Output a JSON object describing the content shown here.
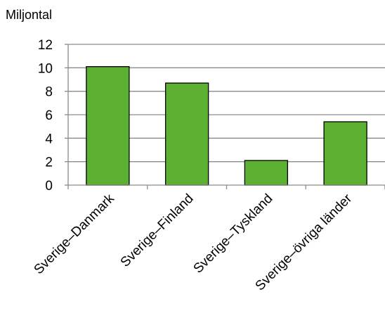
{
  "chart_data": {
    "type": "bar",
    "ylabel": "Miljontal",
    "categories": [
      "Sverige–Danmark",
      "Sverige–Finland",
      "Sverige–Tyskland",
      "Sverige–övriga länder"
    ],
    "values": [
      10.1,
      8.7,
      2.1,
      5.4
    ],
    "ylim": [
      0,
      12
    ],
    "yticks": [
      0,
      2,
      4,
      6,
      8,
      10,
      12
    ],
    "grid": true,
    "bar_color": "#5cb132",
    "bar_stroke": "#000000",
    "grid_color": "#8c8c8c"
  }
}
